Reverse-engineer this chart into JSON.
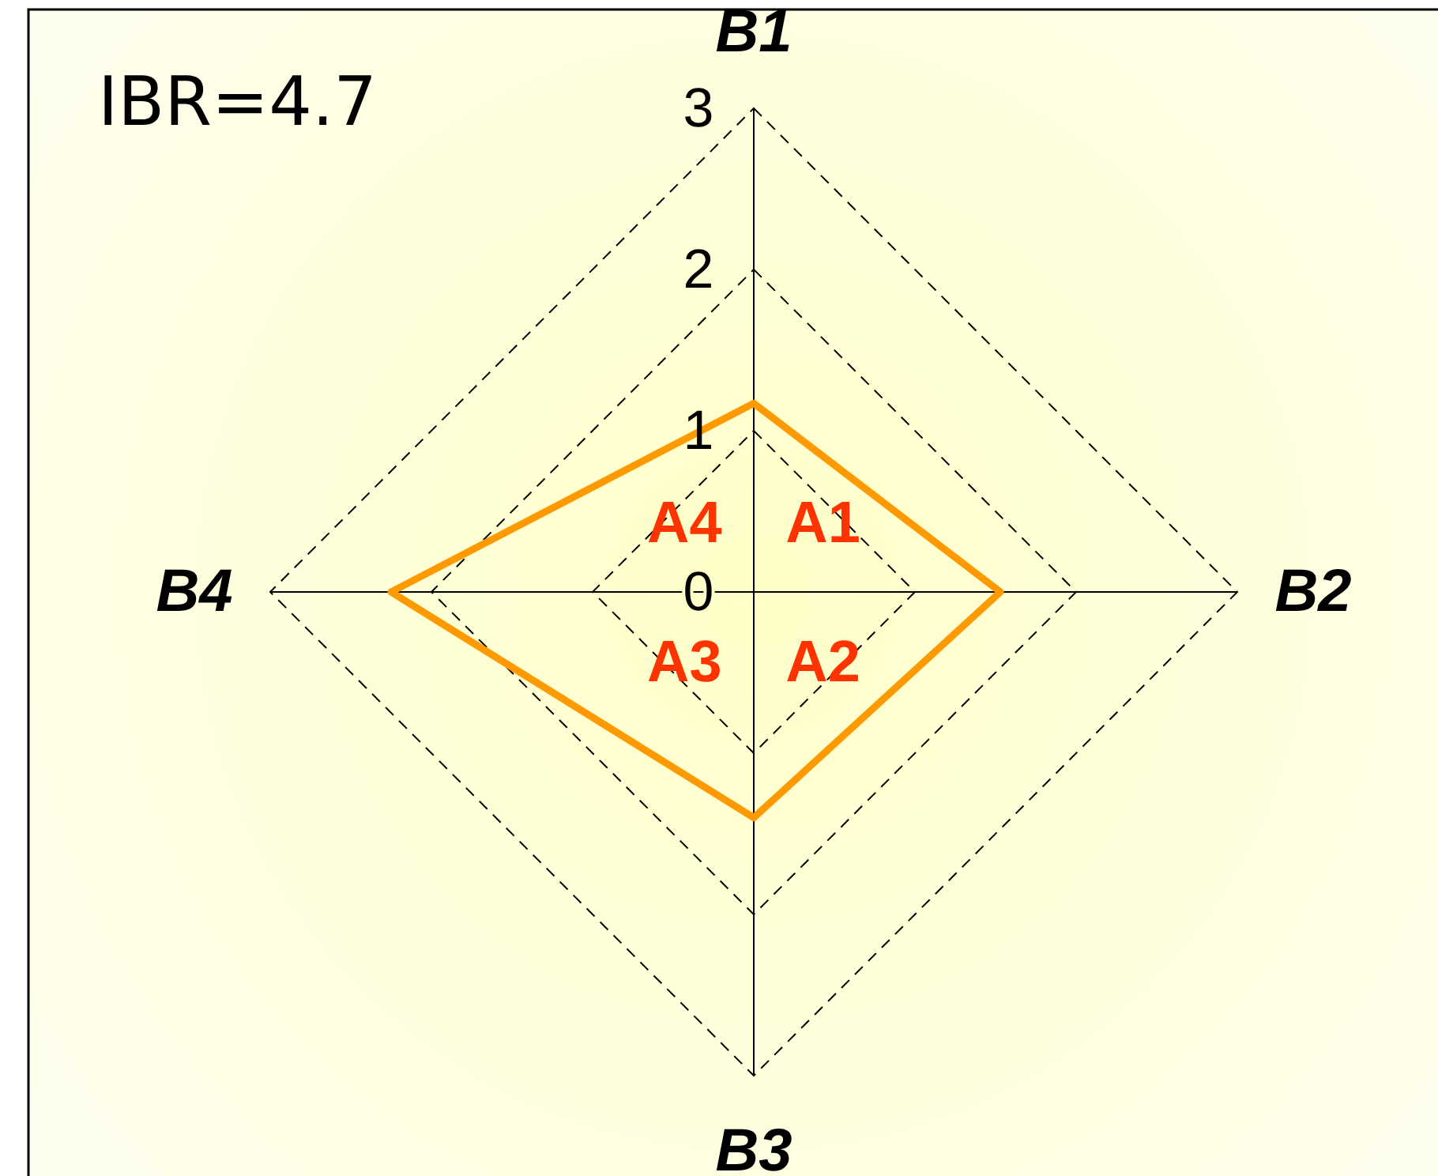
{
  "chart_data": {
    "type": "radar",
    "categories": [
      "B1",
      "B2",
      "B3",
      "B4"
    ],
    "series": [
      {
        "color": "#ff9900",
        "values": [
          1.17,
          1.53,
          1.4,
          2.25
        ]
      }
    ],
    "ylim": [
      0,
      3
    ],
    "yticks": [
      0,
      1,
      2,
      3
    ],
    "grid": true,
    "annotations": [
      "IBR=4.7",
      "A1",
      "A2",
      "A3",
      "A4"
    ]
  }
}
